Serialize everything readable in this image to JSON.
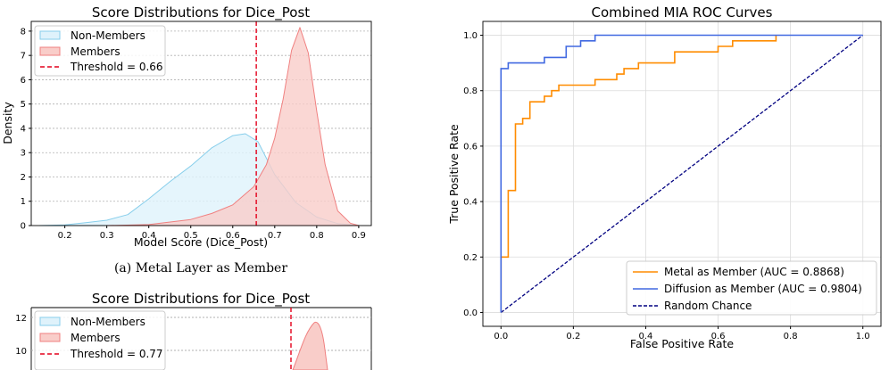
{
  "chart_data": [
    {
      "type": "area",
      "title": "Score Distributions for Dice_Post",
      "xlabel": "Model Score (Dice_Post)",
      "ylabel": "Density",
      "xlim": [
        0.12,
        0.93
      ],
      "ylim": [
        0,
        8.4
      ],
      "xticks": [
        "0.2",
        "0.3",
        "0.4",
        "0.5",
        "0.6",
        "0.7",
        "0.8",
        "0.9"
      ],
      "yticks": [
        "0",
        "1",
        "2",
        "3",
        "4",
        "5",
        "6",
        "7",
        "8"
      ],
      "grid": "horizontal dotted",
      "legend_position": "top-left",
      "threshold": 0.656,
      "legend": [
        "Non-Members",
        "Members",
        "Threshold = 0.66"
      ],
      "series": [
        {
          "name": "Non-Members",
          "color": "#87ceeb",
          "fill": "#dff2fb",
          "x": [
            0.14,
            0.2,
            0.25,
            0.3,
            0.35,
            0.4,
            0.45,
            0.5,
            0.55,
            0.6,
            0.63,
            0.66,
            0.7,
            0.75,
            0.8,
            0.85,
            0.9
          ],
          "y": [
            0.0,
            0.03,
            0.12,
            0.22,
            0.45,
            1.1,
            1.8,
            2.45,
            3.2,
            3.7,
            3.78,
            3.45,
            2.1,
            0.95,
            0.35,
            0.08,
            0.0
          ]
        },
        {
          "name": "Members",
          "color": "#f08080",
          "fill": "#f9cdc9",
          "x": [
            0.3,
            0.4,
            0.5,
            0.55,
            0.6,
            0.65,
            0.68,
            0.7,
            0.72,
            0.74,
            0.76,
            0.78,
            0.8,
            0.82,
            0.85,
            0.88,
            0.9
          ],
          "y": [
            0.0,
            0.04,
            0.25,
            0.5,
            0.85,
            1.6,
            2.5,
            3.6,
            5.2,
            7.2,
            8.15,
            7.1,
            4.7,
            2.5,
            0.6,
            0.1,
            0.0
          ]
        }
      ],
      "caption": "(a) Metal Layer as Member"
    },
    {
      "type": "area",
      "title": "Score Distributions for Dice_Post",
      "ylim_partial": [
        0,
        12.3
      ],
      "yticks": [
        "10",
        "12"
      ],
      "legend": [
        "Non-Members",
        "Members",
        "Threshold = 0.77"
      ],
      "legend_position": "top-left"
    },
    {
      "type": "line",
      "title": "Combined MIA ROC Curves",
      "xlabel": "False Positive Rate",
      "ylabel": "True Positive Rate",
      "xlim": [
        -0.05,
        1.05
      ],
      "ylim": [
        -0.05,
        1.05
      ],
      "xticks": [
        "0.0",
        "0.2",
        "0.4",
        "0.6",
        "0.8",
        "1.0"
      ],
      "yticks": [
        "0.0",
        "0.2",
        "0.4",
        "0.6",
        "0.8",
        "1.0"
      ],
      "grid": true,
      "legend_position": "bottom-right",
      "series": [
        {
          "name": "Metal as Member (AUC = 0.8868)",
          "color": "#ff8c00",
          "points": [
            [
              0,
              0
            ],
            [
              0,
              0.2
            ],
            [
              0.02,
              0.2
            ],
            [
              0.02,
              0.44
            ],
            [
              0.04,
              0.44
            ],
            [
              0.04,
              0.68
            ],
            [
              0.06,
              0.68
            ],
            [
              0.06,
              0.7
            ],
            [
              0.08,
              0.7
            ],
            [
              0.08,
              0.76
            ],
            [
              0.12,
              0.76
            ],
            [
              0.12,
              0.78
            ],
            [
              0.14,
              0.78
            ],
            [
              0.14,
              0.8
            ],
            [
              0.16,
              0.8
            ],
            [
              0.16,
              0.82
            ],
            [
              0.26,
              0.82
            ],
            [
              0.26,
              0.84
            ],
            [
              0.32,
              0.84
            ],
            [
              0.32,
              0.86
            ],
            [
              0.34,
              0.86
            ],
            [
              0.34,
              0.88
            ],
            [
              0.38,
              0.88
            ],
            [
              0.38,
              0.9
            ],
            [
              0.48,
              0.9
            ],
            [
              0.48,
              0.94
            ],
            [
              0.6,
              0.94
            ],
            [
              0.6,
              0.96
            ],
            [
              0.64,
              0.96
            ],
            [
              0.64,
              0.98
            ],
            [
              0.76,
              0.98
            ],
            [
              0.76,
              1.0
            ]
          ]
        },
        {
          "name": "Diffusion as Member (AUC = 0.9804)",
          "color": "#4169e1",
          "points": [
            [
              0,
              0
            ],
            [
              0,
              0.88
            ],
            [
              0.02,
              0.88
            ],
            [
              0.02,
              0.9
            ],
            [
              0.12,
              0.9
            ],
            [
              0.12,
              0.92
            ],
            [
              0.18,
              0.92
            ],
            [
              0.18,
              0.96
            ],
            [
              0.22,
              0.96
            ],
            [
              0.22,
              0.98
            ],
            [
              0.26,
              0.98
            ],
            [
              0.26,
              1.0
            ],
            [
              1.0,
              1.0
            ]
          ]
        },
        {
          "name": "Random Chance",
          "color": "#000080",
          "dashed": true,
          "points": [
            [
              0,
              0
            ],
            [
              1,
              1
            ]
          ]
        }
      ]
    }
  ]
}
